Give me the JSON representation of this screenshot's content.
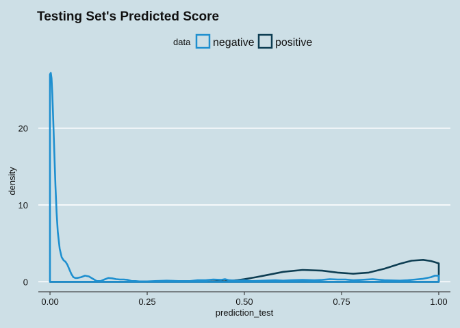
{
  "colors": {
    "background": "#cddfe6",
    "gridline": "#ffffff",
    "negative": "#1e8fcf",
    "positive": "#0d3d52"
  },
  "chart_data": {
    "type": "area",
    "title": "Testing Set's Predicted Score",
    "xlabel": "prediction_test",
    "ylabel": "density",
    "xlim": [
      -0.03,
      1.03
    ],
    "ylim": [
      -1.3,
      28.5
    ],
    "xticks": [
      0.0,
      0.25,
      0.5,
      0.75,
      1.0
    ],
    "xtick_labels": [
      "0.00",
      "0.25",
      "0.50",
      "0.75",
      "1.00"
    ],
    "yticks": [
      0,
      10,
      20
    ],
    "ytick_labels": [
      "0",
      "10",
      "20"
    ],
    "grid": "horizontal major",
    "legend": {
      "title": "data",
      "placement": "top",
      "entries": [
        "negative",
        "positive"
      ]
    },
    "series": [
      {
        "name": "negative",
        "fill": "none",
        "x": [
          0.0,
          0.002,
          0.004,
          0.006,
          0.008,
          0.011,
          0.014,
          0.017,
          0.02,
          0.025,
          0.03,
          0.035,
          0.04,
          0.045,
          0.05,
          0.055,
          0.06,
          0.065,
          0.07,
          0.08,
          0.09,
          0.1,
          0.11,
          0.12,
          0.13,
          0.14,
          0.15,
          0.16,
          0.17,
          0.18,
          0.19,
          0.2,
          0.21,
          0.22,
          0.23,
          0.25,
          0.27,
          0.3,
          0.33,
          0.36,
          0.38,
          0.4,
          0.42,
          0.44,
          0.45,
          0.46,
          0.48,
          0.5,
          0.52,
          0.55,
          0.58,
          0.6,
          0.62,
          0.65,
          0.68,
          0.7,
          0.72,
          0.74,
          0.76,
          0.78,
          0.8,
          0.83,
          0.86,
          0.9,
          0.92,
          0.94,
          0.96,
          0.98,
          0.99,
          1.0
        ],
        "y": [
          27.0,
          27.2,
          26.5,
          24.5,
          21.5,
          17.0,
          12.5,
          9.0,
          6.5,
          4.3,
          3.2,
          2.8,
          2.6,
          2.2,
          1.6,
          1.0,
          0.6,
          0.5,
          0.5,
          0.6,
          0.8,
          0.7,
          0.4,
          0.1,
          0.1,
          0.3,
          0.5,
          0.45,
          0.35,
          0.3,
          0.3,
          0.25,
          0.1,
          0.1,
          0.05,
          0.05,
          0.1,
          0.15,
          0.1,
          0.1,
          0.2,
          0.2,
          0.3,
          0.25,
          0.35,
          0.2,
          0.15,
          0.2,
          0.1,
          0.15,
          0.2,
          0.15,
          0.2,
          0.25,
          0.2,
          0.25,
          0.35,
          0.3,
          0.3,
          0.2,
          0.25,
          0.35,
          0.2,
          0.15,
          0.2,
          0.3,
          0.4,
          0.6,
          0.8,
          0.8
        ]
      },
      {
        "name": "positive",
        "fill": "none",
        "x": [
          0.0,
          0.1,
          0.2,
          0.3,
          0.4,
          0.45,
          0.48,
          0.5,
          0.53,
          0.56,
          0.6,
          0.65,
          0.7,
          0.74,
          0.78,
          0.82,
          0.86,
          0.9,
          0.93,
          0.96,
          0.98,
          1.0
        ],
        "y": [
          0.0,
          0.0,
          0.0,
          0.0,
          0.02,
          0.08,
          0.2,
          0.35,
          0.6,
          0.9,
          1.3,
          1.55,
          1.45,
          1.2,
          1.05,
          1.2,
          1.7,
          2.35,
          2.75,
          2.85,
          2.7,
          2.4
        ]
      }
    ]
  }
}
